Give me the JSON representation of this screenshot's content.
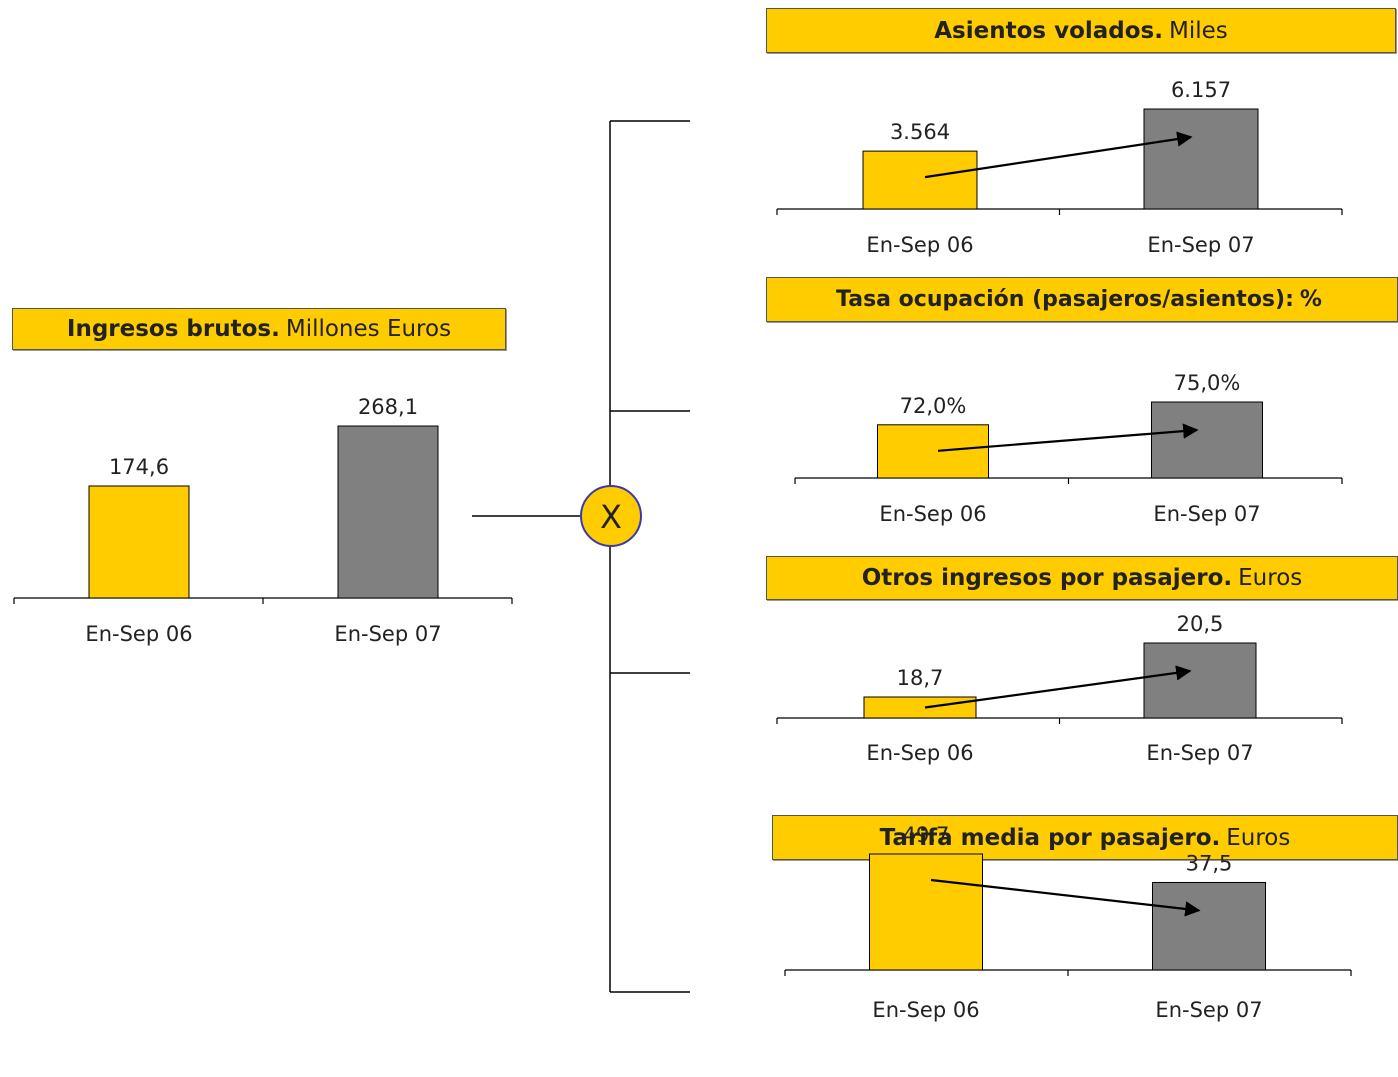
{
  "colors": {
    "yellow": "#ffcc00",
    "grey": "#808080",
    "title_bg": "#ffcc00",
    "multiply_bg": "#ffcc00",
    "multiply_border": "#3a3ab0"
  },
  "operator": {
    "symbol": "X",
    "icon": "multiply-icon"
  },
  "chart_data": [
    {
      "type": "bar",
      "title": "Ingresos brutos.",
      "unit": "Millones Euros",
      "categories": [
        "En-Sep 06",
        "En-Sep 07"
      ],
      "values": [
        174.6,
        268.1
      ],
      "labels": [
        "174,6",
        "268,1"
      ],
      "ylim": [
        0,
        268.1
      ],
      "colors": [
        "#ffcc00",
        "#808080"
      ]
    },
    {
      "type": "bar",
      "title": "Asientos volados.",
      "unit": "Miles",
      "categories": [
        "En-Sep 06",
        "En-Sep 07"
      ],
      "values": [
        3564,
        6157
      ],
      "labels": [
        "3.564",
        "6.157"
      ],
      "ylim": [
        0,
        6157
      ],
      "trend": "up",
      "colors": [
        "#ffcc00",
        "#808080"
      ]
    },
    {
      "type": "bar",
      "title": "Tasa ocupación (pasajeros/asientos):",
      "unit": "%",
      "categories": [
        "En-Sep 06",
        "En-Sep 07"
      ],
      "values": [
        72.0,
        75.0
      ],
      "labels": [
        "72,0%",
        "75,0%"
      ],
      "ylim": [
        65,
        75
      ],
      "trend": "up",
      "colors": [
        "#ffcc00",
        "#808080"
      ]
    },
    {
      "type": "bar",
      "title": "Otros ingresos por pasajero.",
      "unit": "Euros",
      "categories": [
        "En-Sep 06",
        "En-Sep 07"
      ],
      "values": [
        18.7,
        20.5
      ],
      "labels": [
        "18,7",
        "20,5"
      ],
      "ylim": [
        18,
        20.5
      ],
      "trend": "up",
      "colors": [
        "#ffcc00",
        "#808080"
      ]
    },
    {
      "type": "bar",
      "title": "Tarifa media por pasajero.",
      "unit": "Euros",
      "categories": [
        "En-Sep 06",
        "En-Sep 07"
      ],
      "values": [
        49.7,
        37.5
      ],
      "labels": [
        "49,7",
        "37,5"
      ],
      "ylim": [
        0,
        49.7
      ],
      "trend": "down",
      "colors": [
        "#ffcc00",
        "#808080"
      ]
    }
  ]
}
